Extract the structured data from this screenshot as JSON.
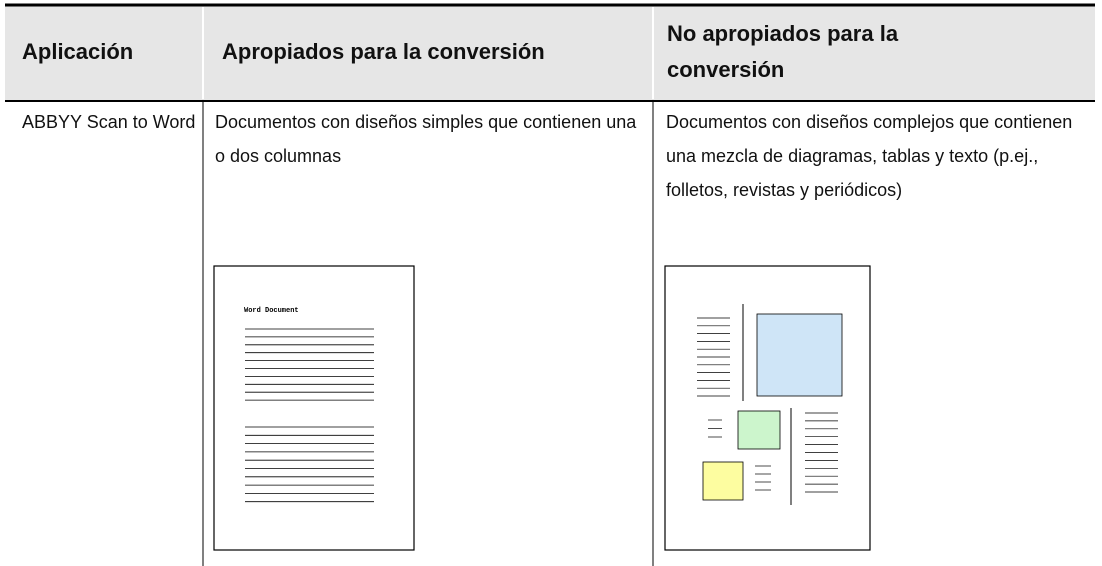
{
  "table": {
    "header": [
      "Aplicación",
      "Apropiados para la conversión",
      "No apropiados para la conversión"
    ],
    "rows": [
      [
        "ABBYY Scan to Word",
        "Documentos con diseños simples que contienen una o dos columnas",
        "Documentos con diseños complejos que contienen una mezcla de diagramas, tablas y texto (p.ej., folletos, revistas y periódicos)"
      ]
    ]
  },
  "illustration": {
    "doc_title": "Word Document"
  }
}
